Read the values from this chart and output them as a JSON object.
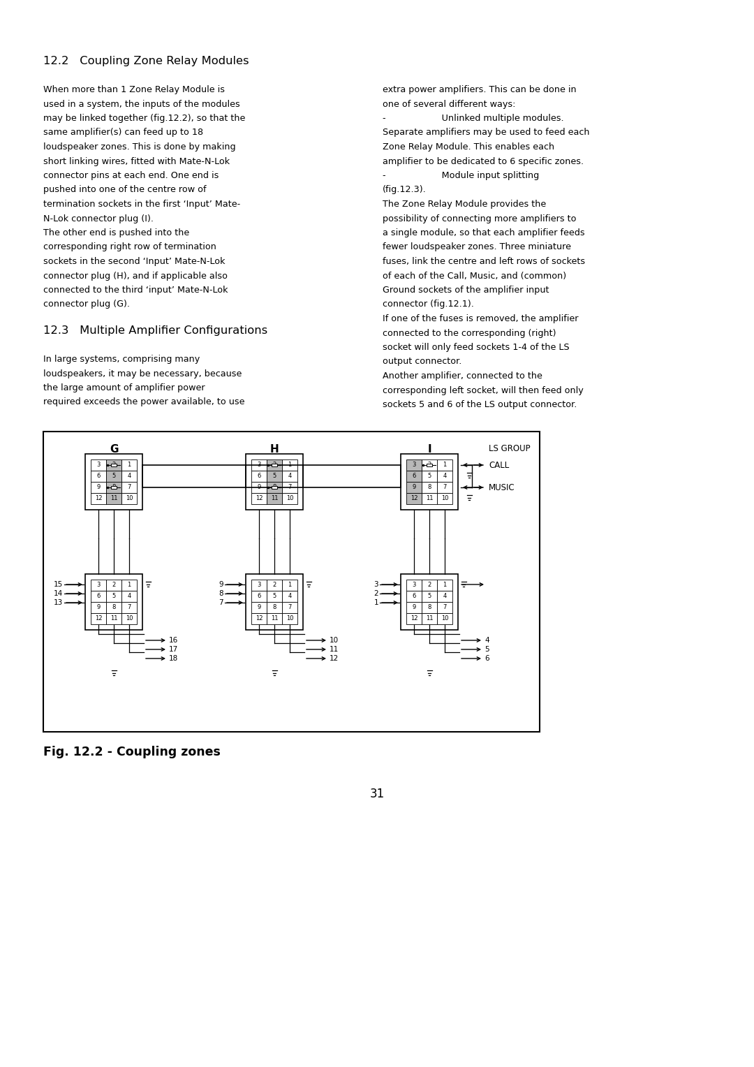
{
  "background_color": "#ffffff",
  "page_number": "31",
  "fig_caption": "Fig. 12.2 - Coupling zones",
  "section1_title": "12.2   Coupling Zone Relay Modules",
  "section2_title": "12.3   Multiple Ampliﬁer Conﬁgurations",
  "left_col_para1": [
    "When more than 1 Zone Relay Module is",
    "used in a system, the inputs of the modules",
    "may be linked together (fig.12.2), so that the",
    "same amplifier(s) can feed up to 18",
    "loudspeaker zones. This is done by making",
    "short linking wires, fitted with Mate-N-Lok",
    "connector pins at each end. One end is",
    "pushed into one of the centre row of",
    "termination sockets in the first ‘Input’ Mate-",
    "N-Lok connector plug (I).",
    "The other end is pushed into the",
    "corresponding right row of termination",
    "sockets in the second ‘Input’ Mate-N-Lok",
    "connector plug (H), and if applicable also",
    "connected to the third ‘input’ Mate-N-Lok",
    "connector plug (G)."
  ],
  "left_col_para2": [
    "In large systems, comprising many",
    "loudspeakers, it may be necessary, because",
    "the large amount of amplifier power",
    "required exceeds the power available, to use"
  ],
  "right_col_para1": [
    "extra power amplifiers. This can be done in",
    "one of several different ways:",
    "-                    Unlinked multiple modules.",
    "Separate amplifiers may be used to feed each",
    "Zone Relay Module. This enables each",
    "amplifier to be dedicated to 6 specific zones.",
    "-                    Module input splitting",
    "(fig.12.3).",
    "The Zone Relay Module provides the",
    "possibility of connecting more amplifiers to",
    "a single module, so that each amplifier feeds",
    "fewer loudspeaker zones. Three miniature",
    "fuses, link the centre and left rows of sockets",
    "of each of the Call, Music, and (common)",
    "Ground sockets of the amplifier input",
    "connector (fig.12.1).",
    "If one of the fuses is removed, the amplifier",
    "connected to the corresponding (right)",
    "socket will only feed sockets 1-4 of the LS",
    "output connector.",
    "Another amplifier, connected to the",
    "corresponding left socket, will then feed only",
    "sockets 5 and 6 of the LS output connector."
  ]
}
